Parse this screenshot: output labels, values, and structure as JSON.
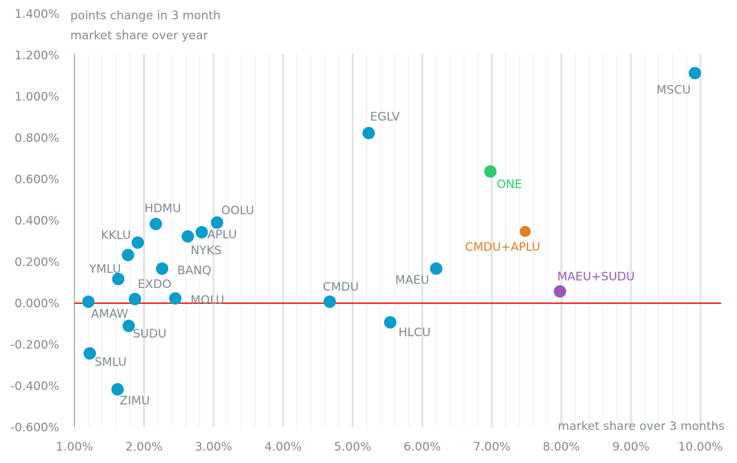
{
  "chart_data": {
    "type": "scatter",
    "title": "",
    "ylabel": "points change in 3 month market share over year",
    "ylabel_lines": [
      "points change in 3 month",
      "market share over year"
    ],
    "xlabel": "market share over 3 months",
    "xlim": [
      1.0,
      10.0
    ],
    "ylim": [
      -0.6,
      1.4
    ],
    "x_ticks": [
      1,
      2,
      3,
      4,
      5,
      6,
      7,
      8,
      9,
      10
    ],
    "x_tick_labels": [
      "1.00%",
      "2.00%",
      "3.00%",
      "4.00%",
      "5.00%",
      "6.00%",
      "7.00%",
      "8.00%",
      "9.00%",
      "10.00%"
    ],
    "y_ticks": [
      -0.6,
      -0.4,
      -0.2,
      0,
      0.2,
      0.4,
      0.6,
      0.8,
      1.0,
      1.2,
      1.4
    ],
    "y_tick_labels": [
      "-0.600%",
      "-0.400%",
      "-0.200%",
      "0.000%",
      "0.200%",
      "0.400%",
      "0.600%",
      "0.800%",
      "1.000%",
      "1.200%",
      "1.400%"
    ],
    "grid": "vertical",
    "minor_x_step": 0.2,
    "reference_line": {
      "y": 0,
      "color": "#e8211c"
    },
    "colors": {
      "carrier": "#0a9ccd",
      "ONE": "#2ecc71",
      "CMDU+APLU": "#e67e22",
      "MAEU+SUDU": "#9b59b6",
      "label": "#7f8a8f"
    },
    "points": [
      {
        "label": "MSCU",
        "x": 9.92,
        "y": 1.113,
        "group": "carrier",
        "label_pos": "below-left"
      },
      {
        "label": "EGLV",
        "x": 5.23,
        "y": 0.823,
        "group": "carrier",
        "label_pos": "above-right"
      },
      {
        "label": "ONE",
        "x": 6.98,
        "y": 0.637,
        "group": "ONE",
        "label_pos": "below-right"
      },
      {
        "label": "CMDU+APLU",
        "x": 7.48,
        "y": 0.347,
        "group": "CMDU+APLU",
        "label_pos": "below-left"
      },
      {
        "label": "MAEU+SUDU",
        "x": 7.98,
        "y": 0.057,
        "group": "MAEU+SUDU",
        "label_pos": "above-right"
      },
      {
        "label": "MAEU",
        "x": 6.2,
        "y": 0.167,
        "group": "carrier",
        "label_pos": "left"
      },
      {
        "label": "CMDU",
        "x": 4.67,
        "y": 0.007,
        "group": "carrier",
        "label_pos": "above"
      },
      {
        "label": "HLCU",
        "x": 5.54,
        "y": -0.093,
        "group": "carrier",
        "label_pos": "below-right"
      },
      {
        "label": "OOLU",
        "x": 3.05,
        "y": 0.39,
        "group": "carrier",
        "label_pos": "above-right"
      },
      {
        "label": "APLU",
        "x": 2.83,
        "y": 0.343,
        "group": "carrier",
        "label_pos": "right"
      },
      {
        "label": "NYKS",
        "x": 2.63,
        "y": 0.323,
        "group": "carrier",
        "label_pos": "below-right"
      },
      {
        "label": "HDMU",
        "x": 2.17,
        "y": 0.383,
        "group": "carrier",
        "label_pos": "above"
      },
      {
        "label": "KKLU",
        "x": 1.91,
        "y": 0.293,
        "group": "carrier",
        "label_pos": "left"
      },
      {
        "label": "",
        "x": 1.77,
        "y": 0.233,
        "group": "carrier",
        "label_pos": "none"
      },
      {
        "label": "BANQ",
        "x": 2.26,
        "y": 0.167,
        "group": "carrier",
        "label_pos": "right"
      },
      {
        "label": "YMLU",
        "x": 1.63,
        "y": 0.117,
        "group": "carrier",
        "label_pos": "above-left"
      },
      {
        "label": "EXDO",
        "x": 1.87,
        "y": 0.02,
        "group": "carrier",
        "label_pos": "above-right"
      },
      {
        "label": "MOLU",
        "x": 2.45,
        "y": 0.023,
        "group": "carrier",
        "label_pos": "right"
      },
      {
        "label": "AMAW",
        "x": 1.2,
        "y": 0.007,
        "group": "carrier",
        "label_pos": "below-right"
      },
      {
        "label": "SUDU",
        "x": 1.78,
        "y": -0.11,
        "group": "carrier",
        "label_pos": "below-right"
      },
      {
        "label": "SMLU",
        "x": 1.22,
        "y": -0.243,
        "group": "carrier",
        "label_pos": "below-right"
      },
      {
        "label": "ZIMU",
        "x": 1.62,
        "y": -0.417,
        "group": "carrier",
        "label_pos": "below-right"
      }
    ]
  }
}
